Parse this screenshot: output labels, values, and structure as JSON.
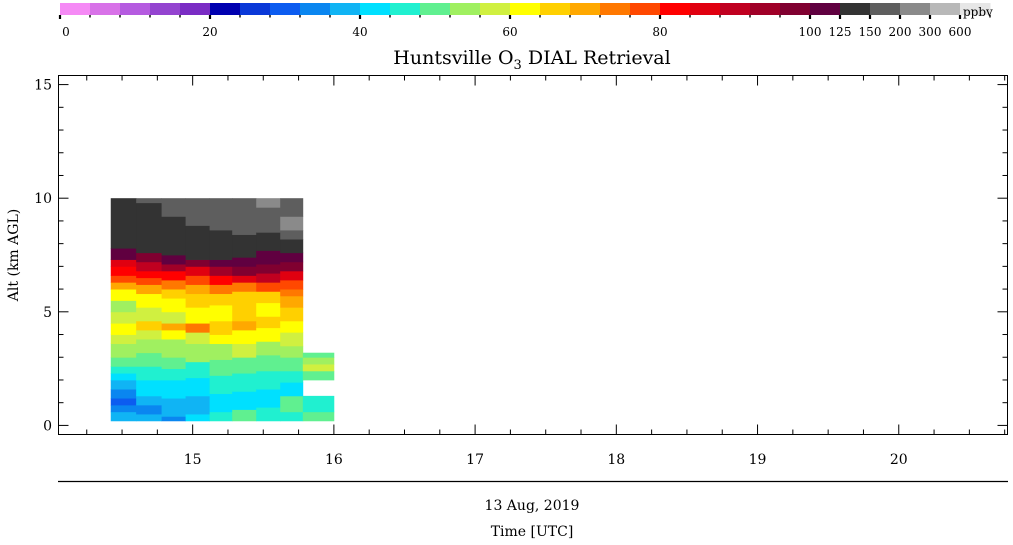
{
  "chart_data": {
    "type": "heatmap",
    "title": "Huntsville O",
    "title_subscript": "3",
    "title_rest": " DIAL Retrieval",
    "ylabel": "Alt (km AGL)",
    "xlabel_date": "13 Aug, 2019",
    "xlabel": "Time [UTC]",
    "colorbar_unit": "ppbv",
    "xlim": [
      14.05,
      20.77
    ],
    "ylim": [
      -0.4,
      15.4
    ],
    "x_ticks": [
      "15",
      "16",
      "17",
      "18",
      "19",
      "20"
    ],
    "x_tick_values": [
      15,
      16,
      17,
      18,
      19,
      20
    ],
    "y_ticks": [
      "0",
      "5",
      "10",
      "15"
    ],
    "y_tick_values": [
      0,
      5,
      10,
      15
    ],
    "colorbar_labels": [
      {
        "text": "0",
        "index": 0
      },
      {
        "text": "20",
        "index": 5
      },
      {
        "text": "40",
        "index": 10
      },
      {
        "text": "60",
        "index": 15
      },
      {
        "text": "80",
        "index": 20
      },
      {
        "text": "100",
        "index": 25
      },
      {
        "text": "125",
        "index": 26
      },
      {
        "text": "150",
        "index": 27
      },
      {
        "text": "200",
        "index": 28
      },
      {
        "text": "300",
        "index": 29
      },
      {
        "text": "600",
        "index": 30
      }
    ],
    "colorbar_colors": [
      "#f58af5",
      "#d872e8",
      "#b55be0",
      "#9444d0",
      "#7a2cc4",
      "#0000b0",
      "#0a38d8",
      "#0c5cf0",
      "#0a86f0",
      "#10b4f4",
      "#00e0ff",
      "#20f0d0",
      "#60f090",
      "#a0f060",
      "#d0f040",
      "#ffff00",
      "#ffd000",
      "#ffa800",
      "#ff7800",
      "#ff4800",
      "#ff0000",
      "#e00010",
      "#c00020",
      "#a00028",
      "#800030",
      "#600040",
      "#333333",
      "#5e5e5e",
      "#8a8a8a",
      "#b8b8b8",
      "#e6e6e6"
    ],
    "profiles": [
      {
        "t": [
          14.42,
          14.6
        ],
        "layers": [
          [
            0.2,
            0.6,
            "#10b4f4"
          ],
          [
            0.6,
            0.9,
            "#0a86f0"
          ],
          [
            0.9,
            1.2,
            "#0c5cf0"
          ],
          [
            1.2,
            1.6,
            "#0a86f0"
          ],
          [
            1.6,
            2.0,
            "#10b4f4"
          ],
          [
            2.0,
            2.3,
            "#00e0ff"
          ],
          [
            2.3,
            2.6,
            "#20f0d0"
          ],
          [
            2.6,
            3.0,
            "#60f090"
          ],
          [
            3.0,
            3.6,
            "#a0f060"
          ],
          [
            3.6,
            4.0,
            "#d0f040"
          ],
          [
            4.0,
            4.5,
            "#ffff00"
          ],
          [
            4.5,
            5.0,
            "#d0f040"
          ],
          [
            5.0,
            5.5,
            "#a0f060"
          ],
          [
            5.5,
            6.0,
            "#ffff00"
          ],
          [
            6.0,
            6.3,
            "#ffa800"
          ],
          [
            6.3,
            6.6,
            "#ff4800"
          ],
          [
            6.6,
            7.0,
            "#ff0000"
          ],
          [
            7.0,
            7.3,
            "#e00010"
          ],
          [
            7.3,
            7.8,
            "#600040"
          ],
          [
            7.8,
            10.0,
            "#333333"
          ]
        ]
      },
      {
        "t": [
          14.6,
          14.78
        ],
        "layers": [
          [
            0.2,
            0.5,
            "#10b4f4"
          ],
          [
            0.5,
            0.9,
            "#0a86f0"
          ],
          [
            0.9,
            1.3,
            "#10b4f4"
          ],
          [
            1.3,
            2.0,
            "#00e0ff"
          ],
          [
            2.0,
            2.6,
            "#20f0d0"
          ],
          [
            2.6,
            3.2,
            "#60f090"
          ],
          [
            3.2,
            3.8,
            "#a0f060"
          ],
          [
            3.8,
            4.2,
            "#d0f040"
          ],
          [
            4.2,
            4.6,
            "#ffd000"
          ],
          [
            4.6,
            5.2,
            "#d0f040"
          ],
          [
            5.2,
            5.8,
            "#ffff00"
          ],
          [
            5.8,
            6.2,
            "#ffa800"
          ],
          [
            6.2,
            6.5,
            "#ff4800"
          ],
          [
            6.5,
            6.8,
            "#ff0000"
          ],
          [
            6.8,
            7.2,
            "#c00020"
          ],
          [
            7.2,
            7.6,
            "#800030"
          ],
          [
            7.6,
            9.8,
            "#333333"
          ],
          [
            9.8,
            10.0,
            "#5e5e5e"
          ]
        ]
      },
      {
        "t": [
          14.78,
          14.95
        ],
        "layers": [
          [
            0.2,
            0.4,
            "#0a86f0"
          ],
          [
            0.4,
            1.2,
            "#10b4f4"
          ],
          [
            1.2,
            2.0,
            "#00e0ff"
          ],
          [
            2.0,
            2.5,
            "#20f0d0"
          ],
          [
            2.5,
            3.0,
            "#60f090"
          ],
          [
            3.0,
            3.8,
            "#a0f060"
          ],
          [
            3.8,
            4.2,
            "#ffff00"
          ],
          [
            4.2,
            4.5,
            "#ffa800"
          ],
          [
            4.5,
            5.0,
            "#d0f040"
          ],
          [
            5.0,
            5.6,
            "#ffff00"
          ],
          [
            5.6,
            6.0,
            "#ffd000"
          ],
          [
            6.0,
            6.4,
            "#ff7800"
          ],
          [
            6.4,
            6.8,
            "#ff0000"
          ],
          [
            6.8,
            7.1,
            "#a00028"
          ],
          [
            7.1,
            7.5,
            "#600040"
          ],
          [
            7.5,
            9.2,
            "#333333"
          ],
          [
            9.2,
            10.0,
            "#5e5e5e"
          ]
        ]
      },
      {
        "t": [
          14.95,
          15.12
        ],
        "layers": [
          [
            0.2,
            0.5,
            "#00e0ff"
          ],
          [
            0.5,
            1.3,
            "#10b4f4"
          ],
          [
            1.3,
            2.1,
            "#00e0ff"
          ],
          [
            2.1,
            2.8,
            "#20f0d0"
          ],
          [
            2.8,
            3.6,
            "#a0f060"
          ],
          [
            3.6,
            4.1,
            "#d0f040"
          ],
          [
            4.1,
            4.5,
            "#ff7800"
          ],
          [
            4.5,
            5.2,
            "#ffff00"
          ],
          [
            5.2,
            5.8,
            "#ffd000"
          ],
          [
            5.8,
            6.2,
            "#ffa800"
          ],
          [
            6.2,
            6.6,
            "#ff4800"
          ],
          [
            6.6,
            7.0,
            "#e00010"
          ],
          [
            7.0,
            7.3,
            "#800030"
          ],
          [
            7.3,
            8.8,
            "#333333"
          ],
          [
            8.8,
            10.0,
            "#5e5e5e"
          ]
        ]
      },
      {
        "t": [
          15.12,
          15.28
        ],
        "layers": [
          [
            0.2,
            0.6,
            "#20f0d0"
          ],
          [
            0.6,
            1.4,
            "#00e0ff"
          ],
          [
            1.4,
            2.2,
            "#20f0d0"
          ],
          [
            2.2,
            2.9,
            "#60f090"
          ],
          [
            2.9,
            3.6,
            "#a0f060"
          ],
          [
            3.6,
            4.0,
            "#ffff00"
          ],
          [
            4.0,
            4.6,
            "#ffd000"
          ],
          [
            4.6,
            5.3,
            "#ffff00"
          ],
          [
            5.3,
            5.8,
            "#ffd000"
          ],
          [
            5.8,
            6.2,
            "#ff7800"
          ],
          [
            6.2,
            6.6,
            "#ff0000"
          ],
          [
            6.6,
            7.0,
            "#a00028"
          ],
          [
            7.0,
            7.3,
            "#600040"
          ],
          [
            7.3,
            8.6,
            "#333333"
          ],
          [
            8.6,
            10.0,
            "#5e5e5e"
          ]
        ]
      },
      {
        "t": [
          15.28,
          15.45
        ],
        "layers": [
          [
            0.2,
            0.7,
            "#60f090"
          ],
          [
            0.7,
            1.5,
            "#00e0ff"
          ],
          [
            1.5,
            2.3,
            "#20f0d0"
          ],
          [
            2.3,
            3.0,
            "#60f090"
          ],
          [
            3.0,
            3.6,
            "#d0f040"
          ],
          [
            3.6,
            4.2,
            "#ffff00"
          ],
          [
            4.2,
            4.6,
            "#ffa800"
          ],
          [
            4.6,
            5.3,
            "#ffd000"
          ],
          [
            5.3,
            5.9,
            "#ffd000"
          ],
          [
            5.9,
            6.3,
            "#ff7800"
          ],
          [
            6.3,
            6.6,
            "#e00010"
          ],
          [
            6.6,
            7.0,
            "#800030"
          ],
          [
            7.0,
            7.4,
            "#600040"
          ],
          [
            7.4,
            8.4,
            "#333333"
          ],
          [
            8.4,
            10.0,
            "#5e5e5e"
          ]
        ]
      },
      {
        "t": [
          15.45,
          15.62
        ],
        "layers": [
          [
            0.2,
            0.8,
            "#20f0d0"
          ],
          [
            0.8,
            1.6,
            "#00e0ff"
          ],
          [
            1.6,
            2.4,
            "#20f0d0"
          ],
          [
            2.4,
            3.1,
            "#60f090"
          ],
          [
            3.1,
            3.7,
            "#a0f060"
          ],
          [
            3.7,
            4.3,
            "#ffff00"
          ],
          [
            4.3,
            4.8,
            "#ffd000"
          ],
          [
            4.8,
            5.4,
            "#ffff00"
          ],
          [
            5.4,
            5.9,
            "#ffd000"
          ],
          [
            5.9,
            6.3,
            "#ff4800"
          ],
          [
            6.3,
            6.7,
            "#c00020"
          ],
          [
            6.7,
            7.1,
            "#800030"
          ],
          [
            7.1,
            7.7,
            "#600040"
          ],
          [
            7.7,
            8.5,
            "#333333"
          ],
          [
            8.5,
            9.6,
            "#5e5e5e"
          ],
          [
            9.6,
            10.0,
            "#8a8a8a"
          ]
        ]
      },
      {
        "t": [
          15.62,
          15.78
        ],
        "layers": [
          [
            0.2,
            0.6,
            "#20f0d0"
          ],
          [
            0.6,
            1.3,
            "#60f090"
          ],
          [
            1.3,
            1.9,
            "#00e0ff"
          ],
          [
            1.9,
            2.4,
            "#20f0d0"
          ],
          [
            2.4,
            3.0,
            "#60f090"
          ],
          [
            3.0,
            3.5,
            "#a0f060"
          ],
          [
            3.5,
            4.1,
            "#d0f040"
          ],
          [
            4.1,
            4.6,
            "#ffff00"
          ],
          [
            4.6,
            5.2,
            "#ffd000"
          ],
          [
            5.2,
            5.7,
            "#ffa800"
          ],
          [
            5.7,
            6.0,
            "#ff7800"
          ],
          [
            6.0,
            6.4,
            "#ff4800"
          ],
          [
            6.4,
            6.8,
            "#e00010"
          ],
          [
            6.8,
            7.2,
            "#800030"
          ],
          [
            7.2,
            7.6,
            "#600040"
          ],
          [
            7.6,
            8.2,
            "#333333"
          ],
          [
            8.2,
            8.6,
            "#5e5e5e"
          ],
          [
            8.6,
            9.2,
            "#8a8a8a"
          ],
          [
            9.2,
            10.0,
            "#5e5e5e"
          ]
        ]
      },
      {
        "t": [
          15.78,
          16.0
        ],
        "layers": [
          [
            0.2,
            0.6,
            "#60f090"
          ],
          [
            0.6,
            1.3,
            "#20f0d0"
          ],
          [
            2.0,
            2.4,
            "#60f090"
          ],
          [
            2.4,
            2.7,
            "#d0f040"
          ],
          [
            2.7,
            3.0,
            "#a0f060"
          ],
          [
            3.0,
            3.2,
            "#60f090"
          ]
        ]
      }
    ]
  }
}
